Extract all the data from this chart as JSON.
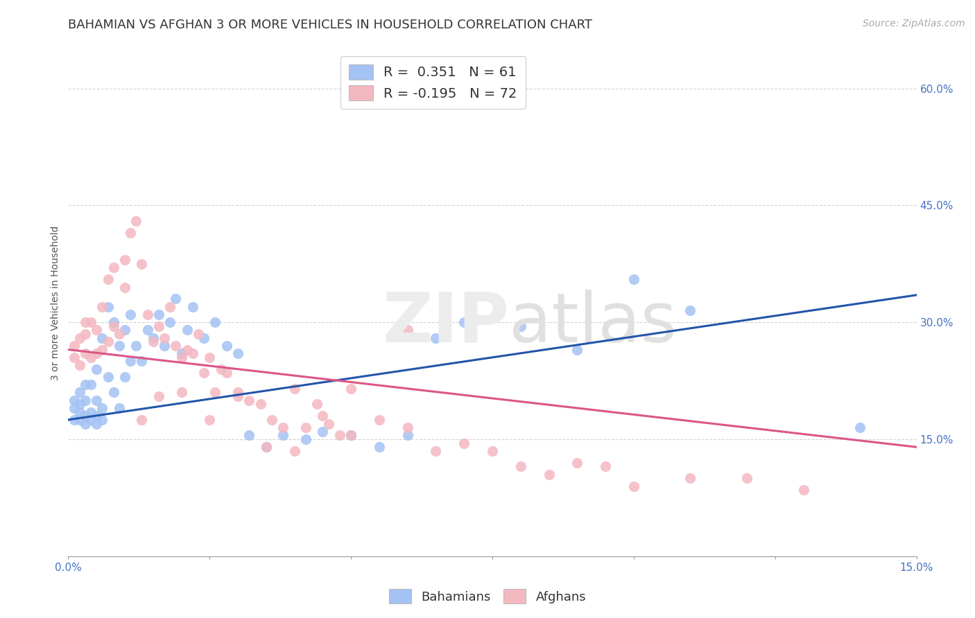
{
  "title": "BAHAMIAN VS AFGHAN 3 OR MORE VEHICLES IN HOUSEHOLD CORRELATION CHART",
  "source": "Source: ZipAtlas.com",
  "ylabel": "3 or more Vehicles in Household",
  "ytick_vals": [
    0.15,
    0.3,
    0.45,
    0.6
  ],
  "ytick_labels": [
    "15.0%",
    "30.0%",
    "45.0%",
    "60.0%"
  ],
  "xlim": [
    0.0,
    0.15
  ],
  "ylim": [
    0.0,
    0.65
  ],
  "legend_r_blue": " 0.351",
  "legend_n_blue": "61",
  "legend_r_pink": "-0.195",
  "legend_n_pink": "72",
  "blue_color": "#a4c2f4",
  "pink_color": "#f4b8c1",
  "line_blue": "#2255aa",
  "line_pink": "#dd5588",
  "blue_line_x": [
    0.0,
    0.15
  ],
  "blue_line_y": [
    0.175,
    0.335
  ],
  "pink_line_x": [
    0.0,
    0.15
  ],
  "pink_line_y": [
    0.265,
    0.14
  ],
  "blue_scatter_x": [
    0.001,
    0.001,
    0.001,
    0.002,
    0.002,
    0.002,
    0.002,
    0.003,
    0.003,
    0.003,
    0.003,
    0.004,
    0.004,
    0.004,
    0.005,
    0.005,
    0.005,
    0.005,
    0.006,
    0.006,
    0.006,
    0.007,
    0.007,
    0.008,
    0.008,
    0.009,
    0.009,
    0.01,
    0.01,
    0.011,
    0.011,
    0.012,
    0.013,
    0.014,
    0.015,
    0.016,
    0.017,
    0.018,
    0.019,
    0.02,
    0.021,
    0.022,
    0.024,
    0.026,
    0.028,
    0.03,
    0.032,
    0.035,
    0.038,
    0.042,
    0.045,
    0.05,
    0.055,
    0.06,
    0.065,
    0.07,
    0.08,
    0.09,
    0.1,
    0.11,
    0.14
  ],
  "blue_scatter_y": [
    0.175,
    0.19,
    0.2,
    0.175,
    0.185,
    0.195,
    0.21,
    0.17,
    0.18,
    0.2,
    0.22,
    0.175,
    0.185,
    0.22,
    0.17,
    0.18,
    0.2,
    0.24,
    0.175,
    0.19,
    0.28,
    0.23,
    0.32,
    0.21,
    0.3,
    0.19,
    0.27,
    0.23,
    0.29,
    0.25,
    0.31,
    0.27,
    0.25,
    0.29,
    0.28,
    0.31,
    0.27,
    0.3,
    0.33,
    0.26,
    0.29,
    0.32,
    0.28,
    0.3,
    0.27,
    0.26,
    0.155,
    0.14,
    0.155,
    0.15,
    0.16,
    0.155,
    0.14,
    0.155,
    0.28,
    0.3,
    0.295,
    0.265,
    0.355,
    0.315,
    0.165
  ],
  "pink_scatter_x": [
    0.001,
    0.001,
    0.002,
    0.002,
    0.003,
    0.003,
    0.003,
    0.004,
    0.004,
    0.005,
    0.005,
    0.006,
    0.006,
    0.007,
    0.007,
    0.008,
    0.008,
    0.009,
    0.01,
    0.01,
    0.011,
    0.012,
    0.013,
    0.014,
    0.015,
    0.016,
    0.017,
    0.018,
    0.019,
    0.02,
    0.021,
    0.022,
    0.023,
    0.024,
    0.025,
    0.026,
    0.027,
    0.028,
    0.03,
    0.032,
    0.034,
    0.036,
    0.038,
    0.04,
    0.042,
    0.044,
    0.046,
    0.048,
    0.05,
    0.055,
    0.06,
    0.065,
    0.07,
    0.075,
    0.08,
    0.085,
    0.09,
    0.095,
    0.1,
    0.11,
    0.013,
    0.016,
    0.02,
    0.025,
    0.03,
    0.035,
    0.04,
    0.045,
    0.05,
    0.06,
    0.13,
    0.12
  ],
  "pink_scatter_y": [
    0.255,
    0.27,
    0.245,
    0.28,
    0.26,
    0.285,
    0.3,
    0.255,
    0.3,
    0.26,
    0.29,
    0.265,
    0.32,
    0.275,
    0.355,
    0.295,
    0.37,
    0.285,
    0.38,
    0.345,
    0.415,
    0.43,
    0.375,
    0.31,
    0.275,
    0.295,
    0.28,
    0.32,
    0.27,
    0.255,
    0.265,
    0.26,
    0.285,
    0.235,
    0.255,
    0.21,
    0.24,
    0.235,
    0.21,
    0.2,
    0.195,
    0.175,
    0.165,
    0.215,
    0.165,
    0.195,
    0.17,
    0.155,
    0.215,
    0.175,
    0.165,
    0.135,
    0.145,
    0.135,
    0.115,
    0.105,
    0.12,
    0.115,
    0.09,
    0.1,
    0.175,
    0.205,
    0.21,
    0.175,
    0.205,
    0.14,
    0.135,
    0.18,
    0.155,
    0.29,
    0.085,
    0.1
  ],
  "grid_color": "#cccccc",
  "background_color": "#ffffff",
  "title_fontsize": 13,
  "axis_label_fontsize": 10,
  "tick_fontsize": 11,
  "legend_fontsize": 14,
  "source_fontsize": 10
}
